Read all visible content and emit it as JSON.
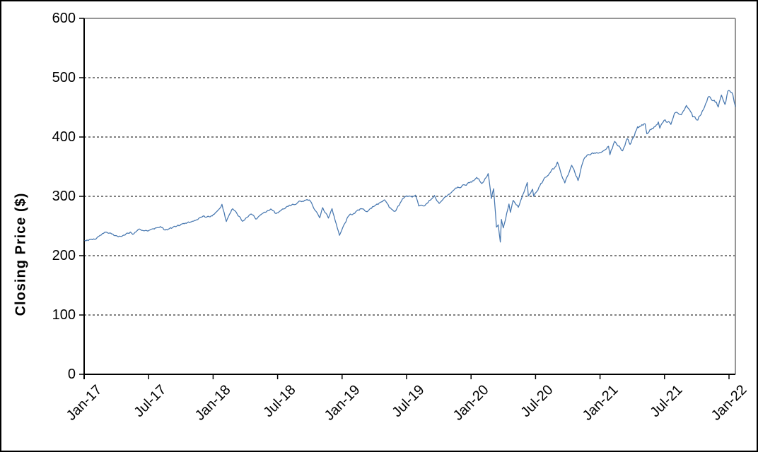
{
  "chart_data": {
    "type": "line",
    "title": "",
    "xlabel": "",
    "ylabel": "Closing Price ($)",
    "ylim": [
      0,
      600
    ],
    "y_ticks": [
      0,
      100,
      200,
      300,
      400,
      500,
      600
    ],
    "x_tick_labels": [
      "Jan-17",
      "Jul-17",
      "Jan-18",
      "Jul-18",
      "Jan-19",
      "Jul-19",
      "Jan-20",
      "Jul-20",
      "Jan-21",
      "Jul-21",
      "Jan-22"
    ],
    "grid": "horizontal-dashed",
    "legend": "none",
    "colors": {
      "line": "#4878b0",
      "axis": "#000000",
      "gridline": "#000000",
      "frame_top_right": "#969696",
      "text": "#000000",
      "background": "#ffffff"
    },
    "series": [
      {
        "name": "Closing Price ($)",
        "points": [
          [
            "2017-01-03",
            225.5
          ],
          [
            "2017-01-31",
            227.5
          ],
          [
            "2017-02-13",
            233.0
          ],
          [
            "2017-03-01",
            239.8
          ],
          [
            "2017-03-27",
            233.7
          ],
          [
            "2017-04-13",
            232.5
          ],
          [
            "2017-05-10",
            239.9
          ],
          [
            "2017-05-17",
            235.8
          ],
          [
            "2017-06-02",
            244.0
          ],
          [
            "2017-06-29",
            241.4
          ],
          [
            "2017-07-14",
            245.5
          ],
          [
            "2017-08-07",
            247.5
          ],
          [
            "2017-08-17",
            243.1
          ],
          [
            "2017-09-05",
            246.1
          ],
          [
            "2017-09-29",
            251.2
          ],
          [
            "2017-10-31",
            257.1
          ],
          [
            "2017-11-30",
            265.0
          ],
          [
            "2017-12-29",
            266.9
          ],
          [
            "2018-01-26",
            286.6
          ],
          [
            "2018-02-08",
            257.6
          ],
          [
            "2018-02-26",
            279.1
          ],
          [
            "2018-03-23",
            258.0
          ],
          [
            "2018-04-18",
            270.1
          ],
          [
            "2018-05-03",
            262.0
          ],
          [
            "2018-06-12",
            278.7
          ],
          [
            "2018-06-27",
            271.0
          ],
          [
            "2018-07-25",
            281.8
          ],
          [
            "2018-08-29",
            290.3
          ],
          [
            "2018-09-20",
            293.6
          ],
          [
            "2018-10-03",
            291.7
          ],
          [
            "2018-10-29",
            263.7
          ],
          [
            "2018-11-07",
            281.0
          ],
          [
            "2018-11-23",
            263.3
          ],
          [
            "2018-12-03",
            279.3
          ],
          [
            "2018-12-24",
            234.3
          ],
          [
            "2019-01-18",
            266.0
          ],
          [
            "2019-02-25",
            279.2
          ],
          [
            "2019-03-08",
            274.5
          ],
          [
            "2019-04-30",
            294.0
          ],
          [
            "2019-05-13",
            280.9
          ],
          [
            "2019-05-31",
            275.3
          ],
          [
            "2019-06-20",
            295.9
          ],
          [
            "2019-07-26",
            302.0
          ],
          [
            "2019-08-05",
            283.8
          ],
          [
            "2019-08-23",
            284.9
          ],
          [
            "2019-09-19",
            301.4
          ],
          [
            "2019-10-02",
            288.1
          ],
          [
            "2019-10-28",
            303.3
          ],
          [
            "2019-11-27",
            314.9
          ],
          [
            "2019-12-27",
            322.9
          ],
          [
            "2020-01-17",
            331.9
          ],
          [
            "2020-01-31",
            321.7
          ],
          [
            "2020-02-19",
            338.3
          ],
          [
            "2020-02-28",
            296.3
          ],
          [
            "2020-03-04",
            312.9
          ],
          [
            "2020-03-12",
            248.1
          ],
          [
            "2020-03-17",
            252.0
          ],
          [
            "2020-03-23",
            222.9
          ],
          [
            "2020-03-26",
            261.2
          ],
          [
            "2020-04-01",
            246.8
          ],
          [
            "2020-04-17",
            287.0
          ],
          [
            "2020-04-21",
            273.0
          ],
          [
            "2020-04-29",
            293.2
          ],
          [
            "2020-05-13",
            281.6
          ],
          [
            "2020-06-08",
            323.2
          ],
          [
            "2020-06-11",
            300.6
          ],
          [
            "2020-06-23",
            312.0
          ],
          [
            "2020-06-26",
            300.1
          ],
          [
            "2020-07-22",
            326.0
          ],
          [
            "2020-08-28",
            350.6
          ],
          [
            "2020-09-02",
            357.7
          ],
          [
            "2020-09-23",
            322.6
          ],
          [
            "2020-10-12",
            352.4
          ],
          [
            "2020-10-30",
            326.5
          ],
          [
            "2020-11-16",
            362.6
          ],
          [
            "2020-12-04",
            369.9
          ],
          [
            "2020-12-31",
            373.9
          ],
          [
            "2021-01-25",
            384.4
          ],
          [
            "2021-01-29",
            370.1
          ],
          [
            "2021-02-12",
            392.6
          ],
          [
            "2021-03-04",
            376.7
          ],
          [
            "2021-03-17",
            397.3
          ],
          [
            "2021-03-25",
            387.5
          ],
          [
            "2021-04-16",
            417.3
          ],
          [
            "2021-05-07",
            422.1
          ],
          [
            "2021-05-12",
            405.4
          ],
          [
            "2021-06-14",
            425.3
          ],
          [
            "2021-06-18",
            414.9
          ],
          [
            "2021-06-30",
            428.1
          ],
          [
            "2021-07-19",
            421.2
          ],
          [
            "2021-07-29",
            440.0
          ],
          [
            "2021-08-18",
            437.5
          ],
          [
            "2021-09-02",
            453.2
          ],
          [
            "2021-09-20",
            434.0
          ],
          [
            "2021-10-04",
            428.6
          ],
          [
            "2021-10-26",
            455.9
          ],
          [
            "2021-11-05",
            468.5
          ],
          [
            "2021-11-26",
            458.9
          ],
          [
            "2021-12-01",
            450.5
          ],
          [
            "2021-12-10",
            470.7
          ],
          [
            "2021-12-20",
            454.9
          ],
          [
            "2021-12-28",
            477.3
          ],
          [
            "2022-01-03",
            477.7
          ],
          [
            "2022-01-12",
            471.0
          ],
          [
            "2022-01-19",
            451.8
          ]
        ]
      }
    ]
  }
}
